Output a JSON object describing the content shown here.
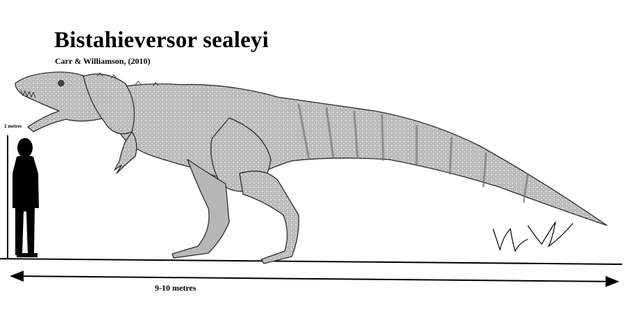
{
  "title": "Bistahieversor sealeyi",
  "subtitle": "Carr & Williamson, (2010)",
  "human_scale_label": "2 metres",
  "length_label": "9-10 metres"
}
